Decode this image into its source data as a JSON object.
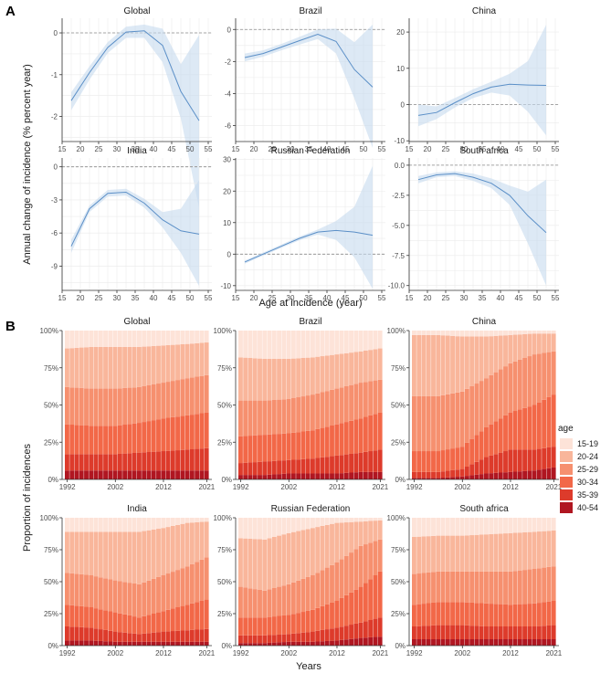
{
  "figure": {
    "panel_a_label": "A",
    "panel_b_label": "B",
    "a_ylabel": "Annual  change of incidence (% percent year)",
    "a_xlabel": "Age at incidence (year)",
    "b_ylabel": "Proportion of incidences",
    "b_xlabel": "Years",
    "legend_title": "age"
  },
  "colors": {
    "line": "#5b8fc7",
    "ribbon": "#c6dbef",
    "grid": "#ebebeb",
    "age": [
      "#fde3d8",
      "#f9b69b",
      "#f6906f",
      "#f26848",
      "#dd3b2b",
      "#b01621"
    ]
  },
  "chart_data": [
    {
      "type": "line",
      "name": "panel-a",
      "x_ticks": [
        15,
        20,
        25,
        30,
        35,
        40,
        45,
        50,
        55
      ],
      "x_lim": [
        15,
        56
      ],
      "panels": [
        {
          "title": "Global",
          "ylim": [
            -2.6,
            0.35
          ],
          "y_ticks": [
            0,
            -1,
            -2
          ],
          "x": [
            17.5,
            22.5,
            27.5,
            32.5,
            37.5,
            42.5,
            47.5,
            52.5
          ],
          "y": [
            -1.62,
            -0.95,
            -0.35,
            0.02,
            0.05,
            -0.3,
            -1.4,
            -2.1
          ],
          "lower": [
            -1.85,
            -1.12,
            -0.48,
            -0.12,
            -0.12,
            -0.7,
            -2.05,
            -4.2
          ],
          "upper": [
            -1.42,
            -0.8,
            -0.22,
            0.15,
            0.2,
            0.1,
            -0.75,
            -0.05
          ]
        },
        {
          "title": "Brazil",
          "ylim": [
            -7.0,
            0.7
          ],
          "y_ticks": [
            0,
            -2,
            -4,
            -6
          ],
          "x": [
            17.5,
            22.5,
            27.5,
            32.5,
            37.5,
            42.5,
            47.5,
            52.5
          ],
          "y": [
            -1.75,
            -1.5,
            -1.1,
            -0.7,
            -0.3,
            -0.75,
            -2.5,
            -3.6
          ],
          "lower": [
            -2.0,
            -1.7,
            -1.3,
            -0.95,
            -0.6,
            -1.5,
            -4.3,
            -7.4
          ],
          "upper": [
            -1.5,
            -1.3,
            -0.9,
            -0.45,
            0.0,
            0.05,
            -0.8,
            0.3
          ]
        },
        {
          "title": "China",
          "ylim": [
            -10.2,
            23.8
          ],
          "y_ticks": [
            20,
            10,
            0,
            -10
          ],
          "x": [
            17.5,
            22.5,
            27.5,
            32.5,
            37.5,
            42.5,
            47.5,
            52.5
          ],
          "y": [
            -3.0,
            -2.2,
            0.5,
            3.0,
            4.8,
            5.6,
            5.4,
            5.3
          ],
          "lower": [
            -6.0,
            -4.0,
            -0.8,
            1.8,
            3.3,
            2.5,
            -2.0,
            -8.5
          ],
          "upper": [
            0.0,
            -0.5,
            1.8,
            4.2,
            6.3,
            8.5,
            12.0,
            22.0
          ]
        },
        {
          "title": "India",
          "ylim": [
            -11.2,
            0.8
          ],
          "y_ticks": [
            0,
            -3,
            -6,
            -9
          ],
          "x": [
            17.5,
            22.5,
            27.5,
            32.5,
            37.5,
            42.5,
            47.5,
            52.5
          ],
          "y": [
            -7.2,
            -3.8,
            -2.4,
            -2.3,
            -3.3,
            -4.8,
            -5.8,
            -6.1
          ],
          "lower": [
            -7.8,
            -4.1,
            -2.7,
            -2.6,
            -3.7,
            -5.5,
            -7.8,
            -10.8
          ],
          "upper": [
            -6.6,
            -3.5,
            -2.1,
            -2.0,
            -2.9,
            -4.1,
            -3.8,
            -1.2
          ]
        },
        {
          "title": "Russian Federation",
          "ylim": [
            -11.5,
            30.5
          ],
          "y_ticks": [
            30,
            20,
            10,
            0,
            -10
          ],
          "x": [
            17.5,
            22.5,
            27.5,
            32.5,
            37.5,
            42.5,
            47.5,
            52.5
          ],
          "y": [
            -2.5,
            0.0,
            2.5,
            5.0,
            7.0,
            7.5,
            7.0,
            6.0
          ],
          "lower": [
            -3.0,
            -0.5,
            2.0,
            4.4,
            6.2,
            4.5,
            -1.0,
            -11.0
          ],
          "upper": [
            -2.0,
            0.5,
            3.0,
            5.6,
            7.8,
            10.5,
            15.0,
            28.0
          ]
        },
        {
          "title": "South africa",
          "ylim": [
            -10.4,
            0.6
          ],
          "y_ticks": [
            0.0,
            -2.5,
            -5.0,
            -7.5,
            -10.0
          ],
          "x": [
            17.5,
            22.5,
            27.5,
            32.5,
            37.5,
            42.5,
            47.5,
            52.5
          ],
          "y": [
            -1.2,
            -0.8,
            -0.7,
            -1.0,
            -1.5,
            -2.5,
            -4.2,
            -5.6
          ],
          "lower": [
            -1.5,
            -1.0,
            -0.9,
            -1.3,
            -1.9,
            -3.3,
            -6.5,
            -10.0
          ],
          "upper": [
            -0.9,
            -0.6,
            -0.5,
            -0.7,
            -1.1,
            -1.7,
            -2.2,
            -1.2
          ]
        }
      ]
    },
    {
      "type": "bar",
      "name": "panel-b",
      "stacked": true,
      "categories": [
        "1992",
        "1993",
        "1994",
        "1995",
        "1996",
        "1997",
        "1998",
        "1999",
        "2000",
        "2001",
        "2002",
        "2003",
        "2004",
        "2005",
        "2006",
        "2007",
        "2008",
        "2009",
        "2010",
        "2011",
        "2012",
        "2013",
        "2014",
        "2015",
        "2016",
        "2017",
        "2018",
        "2019",
        "2020",
        "2021"
      ],
      "x_tick_labels": [
        "1992",
        "2002",
        "2012",
        "2021"
      ],
      "y_tick_labels": [
        "0%",
        "25%",
        "50%",
        "75%",
        "100%"
      ],
      "legend": [
        "15-19",
        "20-24",
        "25-29",
        "30-34",
        "35-39",
        "40-54"
      ],
      "note": "boundaries = cumulative share (%) from top of 40-54 up to top of 20-24, at years 1992/1997/2002/2007/2012/2017/2021",
      "panels": [
        {
          "title": "Global",
          "key_years": [
            1992,
            1997,
            2002,
            2007,
            2012,
            2017,
            2021
          ],
          "boundaries": [
            [
              6,
              6,
              6,
              6,
              6,
              6,
              6
            ],
            [
              17,
              17,
              17,
              18,
              19,
              20,
              21
            ],
            [
              37,
              36,
              36,
              38,
              41,
              43,
              45
            ],
            [
              62,
              61,
              61,
              62,
              65,
              68,
              70
            ],
            [
              88,
              89,
              89,
              89,
              90,
              91,
              92
            ]
          ]
        },
        {
          "title": "Brazil",
          "key_years": [
            1992,
            1997,
            2002,
            2007,
            2012,
            2017,
            2021
          ],
          "boundaries": [
            [
              3,
              3,
              4,
              4,
              4,
              5,
              5
            ],
            [
              11,
              12,
              13,
              14,
              16,
              18,
              20
            ],
            [
              29,
              30,
              31,
              33,
              37,
              41,
              45
            ],
            [
              53,
              53,
              54,
              57,
              61,
              65,
              67
            ],
            [
              82,
              81,
              81,
              82,
              84,
              86,
              88
            ]
          ]
        },
        {
          "title": "China",
          "key_years": [
            1992,
            1997,
            2002,
            2007,
            2012,
            2017,
            2021
          ],
          "boundaries": [
            [
              1,
              1,
              2,
              4,
              5,
              6,
              8
            ],
            [
              5,
              5,
              7,
              15,
              20,
              20,
              22
            ],
            [
              19,
              19,
              22,
              35,
              45,
              50,
              57
            ],
            [
              56,
              56,
              59,
              68,
              78,
              84,
              86
            ],
            [
              97,
              97,
              96,
              96,
              97,
              98,
              98
            ]
          ]
        },
        {
          "title": "India",
          "key_years": [
            1992,
            1997,
            2002,
            2007,
            2012,
            2017,
            2021
          ],
          "boundaries": [
            [
              4,
              4,
              3,
              3,
              3,
              3,
              3
            ],
            [
              15,
              14,
              11,
              9,
              11,
              12,
              13
            ],
            [
              32,
              30,
              26,
              22,
              27,
              32,
              36
            ],
            [
              57,
              55,
              51,
              48,
              55,
              62,
              69
            ],
            [
              89,
              89,
              89,
              89,
              92,
              96,
              97
            ]
          ]
        },
        {
          "title": "Russian Federation",
          "key_years": [
            1992,
            1997,
            2002,
            2007,
            2012,
            2017,
            2021
          ],
          "boundaries": [
            [
              2,
              2,
              3,
              3,
              4,
              6,
              7
            ],
            [
              8,
              8,
              9,
              11,
              14,
              18,
              22
            ],
            [
              22,
              22,
              24,
              28,
              35,
              46,
              58
            ],
            [
              46,
              43,
              48,
              55,
              65,
              78,
              83
            ],
            [
              84,
              83,
              88,
              92,
              96,
              97,
              98
            ]
          ]
        },
        {
          "title": "South africa",
          "key_years": [
            1992,
            1997,
            2002,
            2007,
            2012,
            2017,
            2021
          ],
          "boundaries": [
            [
              5,
              5,
              5,
              5,
              5,
              5,
              5
            ],
            [
              15,
              16,
              16,
              15,
              15,
              15,
              16
            ],
            [
              32,
              34,
              34,
              33,
              32,
              33,
              35
            ],
            [
              56,
              58,
              58,
              58,
              58,
              60,
              62
            ],
            [
              85,
              86,
              86,
              87,
              88,
              89,
              90
            ]
          ]
        }
      ]
    }
  ]
}
